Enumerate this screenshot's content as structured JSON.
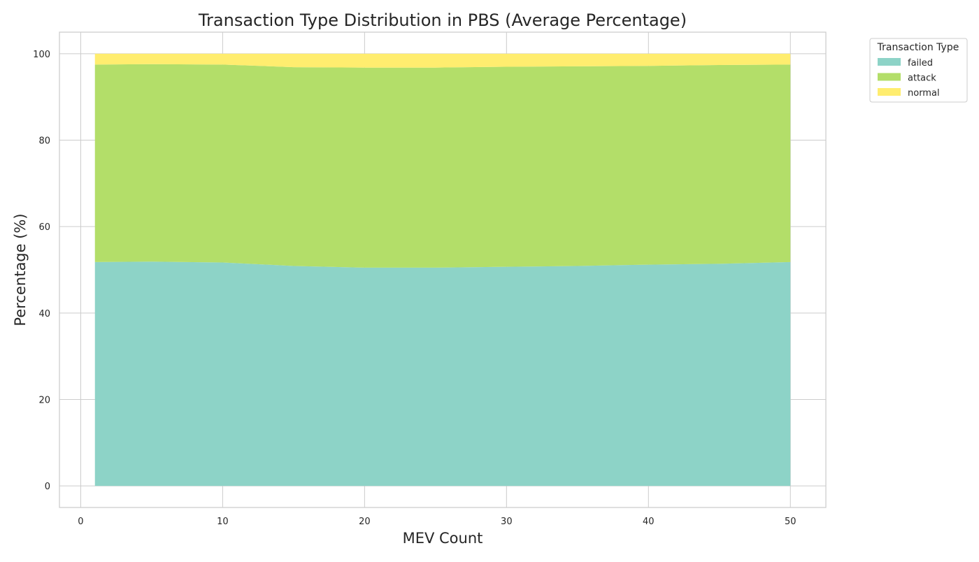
{
  "chart_data": {
    "type": "area",
    "stacked": true,
    "title": "Transaction Type Distribution in PBS (Average Percentage)",
    "xlabel": "MEV Count",
    "ylabel": "Percentage (%)",
    "xlim": [
      -1.5,
      52.5
    ],
    "ylim": [
      -5,
      105
    ],
    "xticks": [
      0,
      10,
      20,
      30,
      40,
      50
    ],
    "yticks": [
      0,
      20,
      40,
      60,
      80,
      100
    ],
    "grid": true,
    "legend": {
      "title": "Transaction Type",
      "placement": "outside-top-right"
    },
    "x": [
      1,
      5,
      10,
      15,
      20,
      25,
      30,
      35,
      40,
      45,
      50
    ],
    "series": [
      {
        "name": "failed",
        "color": "#8dd3c7",
        "values": [
          51.8,
          51.9,
          51.7,
          50.9,
          50.5,
          50.5,
          50.7,
          50.9,
          51.2,
          51.4,
          51.8
        ]
      },
      {
        "name": "attack",
        "color": "#b3de69",
        "values": [
          45.7,
          45.7,
          45.8,
          46.0,
          46.3,
          46.3,
          46.3,
          46.2,
          46.0,
          46.0,
          45.7
        ]
      },
      {
        "name": "normal",
        "color": "#ffed6f",
        "values": [
          2.5,
          2.4,
          2.5,
          3.1,
          3.2,
          3.2,
          3.0,
          2.9,
          2.8,
          2.6,
          2.5
        ]
      }
    ]
  }
}
